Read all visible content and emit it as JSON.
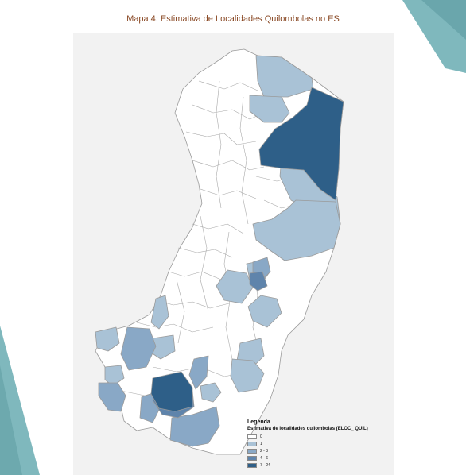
{
  "page": {
    "title": "Mapa 4: Estimativa de Localidades Quilombolas no ES"
  },
  "decor": {
    "accent_color": "#7fb8bd",
    "accent_dark": "#4e8f95"
  },
  "legend": {
    "title": "Legenda",
    "subtitle": "Estimativa de localidades quilombolas (ELOC_ QUIL)",
    "classes": [
      {
        "label": "0",
        "color": "#ffffff"
      },
      {
        "label": "1",
        "color": "#a9c2d6"
      },
      {
        "label": "2 - 3",
        "color": "#89a8c6"
      },
      {
        "label": "4 - 6",
        "color": "#5f84ab"
      },
      {
        "label": "7 - 24",
        "color": "#2e5f88"
      }
    ]
  },
  "map": {
    "border_color": "#9a9a9a",
    "background": "#f2f2f2"
  }
}
